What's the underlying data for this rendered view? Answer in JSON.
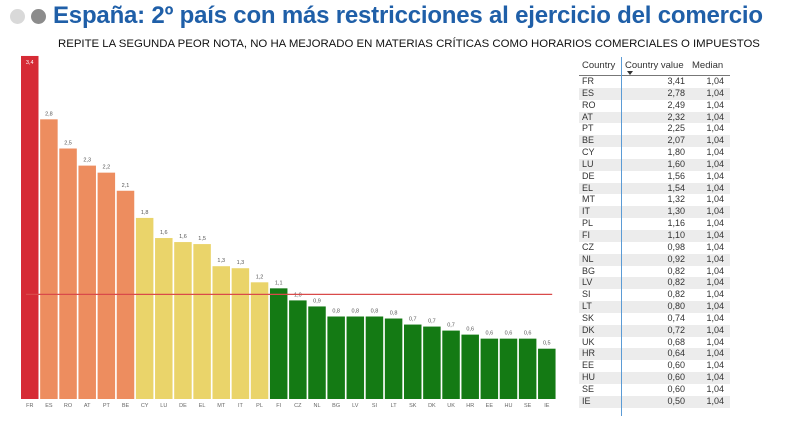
{
  "header": {
    "title": "España: 2º país con más restricciones al ejercicio del comercio",
    "subtitle": "REPITE LA SEGUNDA PEOR NOTA, NO HA MEJORADO EN MATERIAS CRÍTICAS COMO HORARIOS COMERCIALES O IMPUESTOS"
  },
  "colors": {
    "title": "#1f5fa8",
    "red": "#d62b35",
    "orange": "#ed8d5f",
    "yellow": "#ead46a",
    "green": "#147a14",
    "median_line": "#d94a4a",
    "accent_line": "#5b9bd5"
  },
  "chart_data": {
    "type": "bar",
    "categories": [
      "FR",
      "ES",
      "RO",
      "AT",
      "PT",
      "BE",
      "CY",
      "LU",
      "DE",
      "EL",
      "MT",
      "IT",
      "PL",
      "FI",
      "CZ",
      "NL",
      "BG",
      "LV",
      "SI",
      "LT",
      "SK",
      "DK",
      "UK",
      "HR",
      "EE",
      "HU",
      "SE",
      "IE"
    ],
    "values": [
      3.41,
      2.78,
      2.49,
      2.32,
      2.25,
      2.07,
      1.8,
      1.6,
      1.56,
      1.54,
      1.32,
      1.3,
      1.16,
      1.1,
      0.98,
      0.92,
      0.82,
      0.82,
      0.82,
      0.8,
      0.74,
      0.72,
      0.68,
      0.64,
      0.6,
      0.6,
      0.6,
      0.5
    ],
    "data_labels": [
      "3,4",
      "2,8",
      "2,5",
      "2,3",
      "2,2",
      "2,1",
      "1,8",
      "1,6",
      "1,6",
      "1,5",
      "1,3",
      "1,3",
      "1,2",
      "1,1",
      "1,0",
      "0,9",
      "0,8",
      "0,8",
      "0,8",
      "0,8",
      "0,7",
      "0,7",
      "0,7",
      "0,6",
      "0,6",
      "0,6",
      "0,6",
      "0,5"
    ],
    "bar_colors": [
      "red",
      "orange",
      "orange",
      "orange",
      "orange",
      "orange",
      "yellow",
      "yellow",
      "yellow",
      "yellow",
      "yellow",
      "yellow",
      "yellow",
      "green",
      "green",
      "green",
      "green",
      "green",
      "green",
      "green",
      "green",
      "green",
      "green",
      "green",
      "green",
      "green",
      "green",
      "green"
    ],
    "median": 1.04,
    "ylim": [
      0,
      3.5
    ],
    "grid": false
  },
  "table": {
    "headers": [
      "Country",
      "Country value",
      "Median"
    ],
    "rows": [
      [
        "FR",
        "3,41",
        "1,04"
      ],
      [
        "ES",
        "2,78",
        "1,04"
      ],
      [
        "RO",
        "2,49",
        "1,04"
      ],
      [
        "AT",
        "2,32",
        "1,04"
      ],
      [
        "PT",
        "2,25",
        "1,04"
      ],
      [
        "BE",
        "2,07",
        "1,04"
      ],
      [
        "CY",
        "1,80",
        "1,04"
      ],
      [
        "LU",
        "1,60",
        "1,04"
      ],
      [
        "DE",
        "1,56",
        "1,04"
      ],
      [
        "EL",
        "1,54",
        "1,04"
      ],
      [
        "MT",
        "1,32",
        "1,04"
      ],
      [
        "IT",
        "1,30",
        "1,04"
      ],
      [
        "PL",
        "1,16",
        "1,04"
      ],
      [
        "FI",
        "1,10",
        "1,04"
      ],
      [
        "CZ",
        "0,98",
        "1,04"
      ],
      [
        "NL",
        "0,92",
        "1,04"
      ],
      [
        "BG",
        "0,82",
        "1,04"
      ],
      [
        "LV",
        "0,82",
        "1,04"
      ],
      [
        "SI",
        "0,82",
        "1,04"
      ],
      [
        "LT",
        "0,80",
        "1,04"
      ],
      [
        "SK",
        "0,74",
        "1,04"
      ],
      [
        "DK",
        "0,72",
        "1,04"
      ],
      [
        "UK",
        "0,68",
        "1,04"
      ],
      [
        "HR",
        "0,64",
        "1,04"
      ],
      [
        "EE",
        "0,60",
        "1,04"
      ],
      [
        "HU",
        "0,60",
        "1,04"
      ],
      [
        "SE",
        "0,60",
        "1,04"
      ],
      [
        "IE",
        "0,50",
        "1,04"
      ]
    ]
  }
}
